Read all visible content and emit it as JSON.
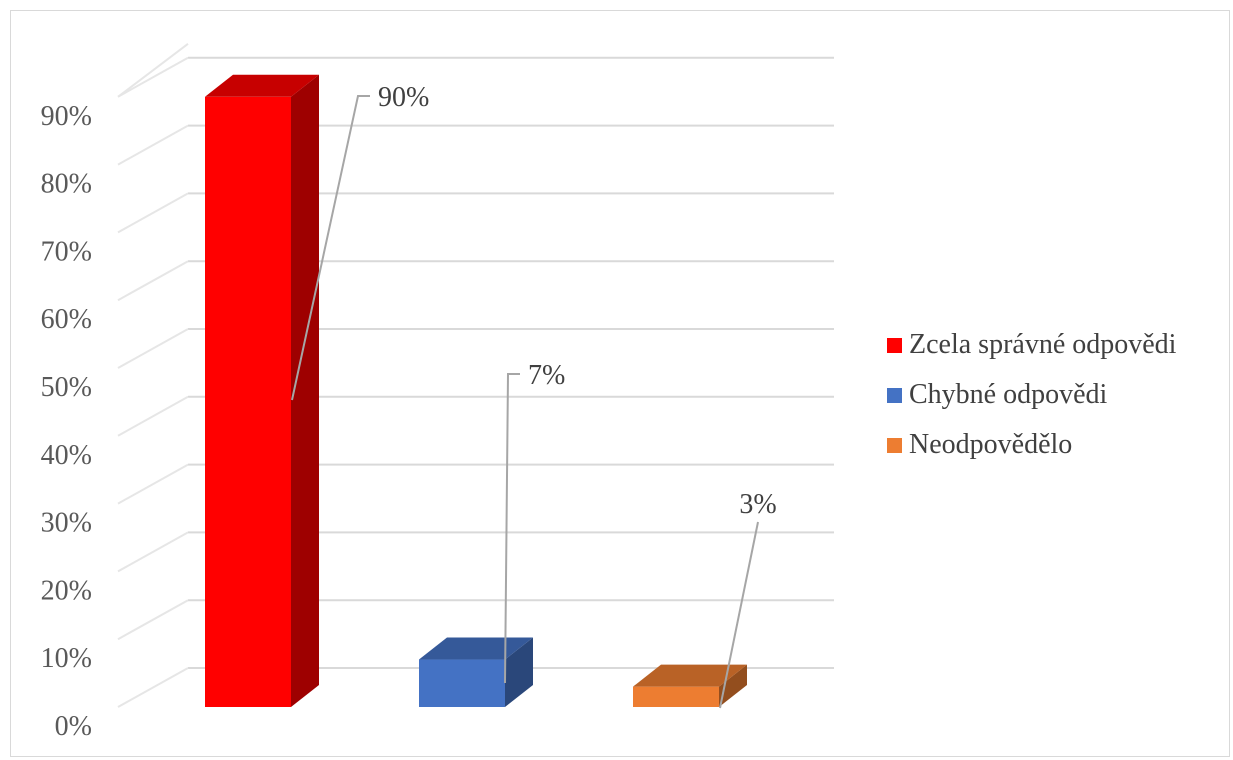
{
  "chart_data": {
    "type": "bar",
    "style": "3d-column",
    "categories": [
      "Zcela správné odpovědi",
      "Chybné odpovědi",
      "Neodpovědělo"
    ],
    "values": [
      90,
      7,
      3
    ],
    "data_labels": [
      "90%",
      "7%",
      "3%"
    ],
    "colors": [
      "#ff0000",
      "#4472c4",
      "#ed7d31"
    ],
    "ylim": [
      0,
      90
    ],
    "y_ticks": [
      0,
      10,
      20,
      30,
      40,
      50,
      60,
      70,
      80,
      90
    ],
    "y_tick_labels": [
      "0%",
      "10%",
      "20%",
      "30%",
      "40%",
      "50%",
      "60%",
      "70%",
      "80%",
      "90%"
    ],
    "grid": true,
    "legend_position": "right",
    "legend_entries": [
      "Zcela správné odpovědi",
      "Chybné odpovědi",
      "Neodpovědělo"
    ]
  }
}
